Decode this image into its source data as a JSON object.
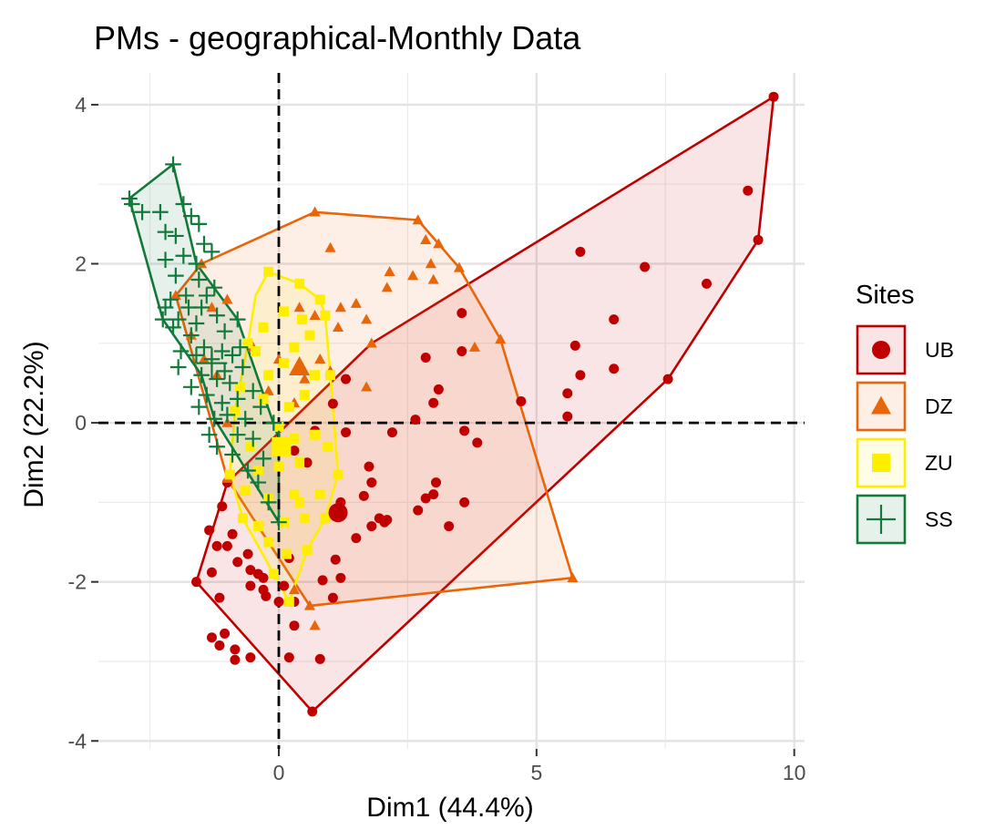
{
  "chart_data": {
    "type": "scatter",
    "title": "PMs - geographical-Monthly Data",
    "xlabel": "Dim1 (44.4%)",
    "ylabel": "Dim2 (22.2%)",
    "xlim": [
      -3.5,
      10.2
    ],
    "ylim": [
      -4.1,
      4.4
    ],
    "xticks": [
      0,
      5,
      10
    ],
    "xtick_labels": [
      "0",
      "5",
      "10"
    ],
    "yticks": [
      -4,
      -2,
      0,
      2,
      4
    ],
    "ytick_labels": [
      "-4",
      "-2",
      "0",
      "2",
      "4"
    ],
    "grid": true,
    "reference_lines": {
      "x": 0,
      "y": 0,
      "style": "dashed"
    },
    "legend": {
      "title": "Sites",
      "position": "right"
    },
    "series": [
      {
        "name": "UB",
        "color": "#c00000",
        "marker": "circle",
        "centroid": [
          1.15,
          -1.13
        ],
        "hull": [
          [
            9.6,
            4.1
          ],
          [
            9.3,
            2.3
          ],
          [
            7.55,
            0.55
          ],
          [
            0.65,
            -3.63
          ],
          [
            -1.6,
            -2.0
          ],
          [
            -1.0,
            -0.75
          ],
          [
            1.8,
            1.0
          ]
        ],
        "points": [
          [
            9.6,
            4.1
          ],
          [
            9.1,
            2.92
          ],
          [
            9.3,
            2.3
          ],
          [
            5.85,
            2.15
          ],
          [
            7.1,
            1.96
          ],
          [
            8.3,
            1.75
          ],
          [
            6.5,
            1.3
          ],
          [
            5.75,
            0.97
          ],
          [
            5.85,
            0.6
          ],
          [
            6.5,
            0.68
          ],
          [
            7.55,
            0.55
          ],
          [
            5.6,
            0.37
          ],
          [
            4.7,
            0.27
          ],
          [
            5.6,
            0.08
          ],
          [
            3.55,
            1.38
          ],
          [
            3.55,
            0.9
          ],
          [
            2.85,
            0.82
          ],
          [
            3.1,
            0.42
          ],
          [
            1.3,
            0.55
          ],
          [
            1.05,
            0.24
          ],
          [
            3.0,
            0.25
          ],
          [
            2.65,
            0.04
          ],
          [
            2.2,
            -0.12
          ],
          [
            3.6,
            -0.1
          ],
          [
            3.85,
            -0.25
          ],
          [
            0.7,
            -0.1
          ],
          [
            1.3,
            -0.12
          ],
          [
            0.3,
            -0.35
          ],
          [
            0.55,
            -0.5
          ],
          [
            1.75,
            -0.55
          ],
          [
            3.05,
            -0.75
          ],
          [
            1.8,
            -0.75
          ],
          [
            1.65,
            -0.92
          ],
          [
            3.0,
            -0.9
          ],
          [
            2.85,
            -0.95
          ],
          [
            3.6,
            -1.0
          ],
          [
            1.2,
            -1.0
          ],
          [
            1.95,
            -1.2
          ],
          [
            2.1,
            -1.22
          ],
          [
            2.05,
            -1.25
          ],
          [
            2.7,
            -1.1
          ],
          [
            3.3,
            -1.3
          ],
          [
            1.8,
            -1.3
          ],
          [
            1.5,
            -1.45
          ],
          [
            -1.0,
            -0.75
          ],
          [
            -1.1,
            -1.05
          ],
          [
            -1.35,
            -1.35
          ],
          [
            -0.9,
            -1.4
          ],
          [
            -1.0,
            -1.55
          ],
          [
            -0.6,
            -1.65
          ],
          [
            -1.2,
            -1.55
          ],
          [
            -0.55,
            -1.85
          ],
          [
            -0.4,
            -1.9
          ],
          [
            -0.3,
            -1.95
          ],
          [
            -1.6,
            -2.0
          ],
          [
            -1.3,
            -1.88
          ],
          [
            -1.15,
            -2.2
          ],
          [
            -0.55,
            -2.05
          ],
          [
            -0.25,
            -2.18
          ],
          [
            0.1,
            -2.05
          ],
          [
            0.85,
            -1.98
          ],
          [
            1.1,
            -1.72
          ],
          [
            1.2,
            -1.95
          ],
          [
            1.05,
            -2.2
          ],
          [
            0.3,
            -2.25
          ],
          [
            0.0,
            -2.25
          ],
          [
            0.3,
            -2.55
          ],
          [
            -1.05,
            -2.65
          ],
          [
            -1.3,
            -2.7
          ],
          [
            -1.15,
            -2.8
          ],
          [
            -0.85,
            -2.85
          ],
          [
            -0.85,
            -2.98
          ],
          [
            -0.55,
            -2.95
          ],
          [
            0.2,
            -2.95
          ],
          [
            0.8,
            -2.97
          ],
          [
            0.65,
            -3.63
          ],
          [
            -0.3,
            -2.1
          ],
          [
            0.2,
            -1.7
          ],
          [
            -0.8,
            -1.75
          ]
        ]
      },
      {
        "name": "DZ",
        "color": "#e8650a",
        "marker": "triangle",
        "centroid": [
          0.4,
          0.7
        ],
        "hull": [
          [
            0.7,
            2.65
          ],
          [
            2.7,
            2.55
          ],
          [
            3.5,
            1.95
          ],
          [
            4.3,
            1.05
          ],
          [
            5.7,
            -1.95
          ],
          [
            0.6,
            -2.3
          ],
          [
            -1.0,
            -0.7
          ],
          [
            -2.0,
            1.6
          ],
          [
            -1.5,
            2.0
          ]
        ],
        "points": [
          [
            0.7,
            2.65
          ],
          [
            2.7,
            2.55
          ],
          [
            2.85,
            2.3
          ],
          [
            3.1,
            2.25
          ],
          [
            2.95,
            2.0
          ],
          [
            3.5,
            1.95
          ],
          [
            3.0,
            1.8
          ],
          [
            2.6,
            1.85
          ],
          [
            2.15,
            1.9
          ],
          [
            2.1,
            1.7
          ],
          [
            1.0,
            2.2
          ],
          [
            4.3,
            1.05
          ],
          [
            3.8,
            0.95
          ],
          [
            1.2,
            1.45
          ],
          [
            1.5,
            1.5
          ],
          [
            1.7,
            1.3
          ],
          [
            0.4,
            1.45
          ],
          [
            0.7,
            1.35
          ],
          [
            1.15,
            1.2
          ],
          [
            1.7,
            0.45
          ],
          [
            1.8,
            1.0
          ],
          [
            0.35,
            0.65
          ],
          [
            0.5,
            0.55
          ],
          [
            0.8,
            0.8
          ],
          [
            1.0,
            0.65
          ],
          [
            0.3,
            0.25
          ],
          [
            0.0,
            0.8
          ],
          [
            -0.2,
            0.4
          ],
          [
            -0.5,
            0.95
          ],
          [
            -1.0,
            1.55
          ],
          [
            -1.3,
            1.45
          ],
          [
            -1.7,
            1.1
          ],
          [
            -1.45,
            0.8
          ],
          [
            -1.2,
            0.6
          ],
          [
            -1.0,
            0.0
          ],
          [
            -1.0,
            -0.7
          ],
          [
            5.7,
            -1.95
          ],
          [
            0.6,
            -2.3
          ],
          [
            0.7,
            -2.55
          ],
          [
            0.3,
            -2.1
          ],
          [
            -1.5,
            2.0
          ],
          [
            -2.0,
            1.6
          ],
          [
            0.45,
            0.65
          ]
        ]
      },
      {
        "name": "ZU",
        "color": "#ffee00",
        "marker": "square",
        "centroid": [
          0.05,
          -0.3
        ],
        "hull": [
          [
            -0.2,
            1.9
          ],
          [
            0.4,
            1.75
          ],
          [
            0.8,
            1.55
          ],
          [
            0.9,
            1.35
          ],
          [
            1.0,
            0.6
          ],
          [
            1.15,
            -0.65
          ],
          [
            0.9,
            -1.2
          ],
          [
            0.55,
            -1.6
          ],
          [
            0.2,
            -2.25
          ],
          [
            -0.7,
            -1.2
          ],
          [
            -0.95,
            -0.65
          ],
          [
            -0.85,
            0.15
          ],
          [
            -0.6,
            1.0
          ],
          [
            -0.45,
            1.6
          ]
        ],
        "points": [
          [
            -0.2,
            1.9
          ],
          [
            0.4,
            1.75
          ],
          [
            0.8,
            1.55
          ],
          [
            0.9,
            1.35
          ],
          [
            0.45,
            1.3
          ],
          [
            0.1,
            1.4
          ],
          [
            -0.3,
            1.2
          ],
          [
            0.6,
            1.1
          ],
          [
            0.3,
            0.95
          ],
          [
            -0.45,
            0.9
          ],
          [
            -0.6,
            1.0
          ],
          [
            0.1,
            0.75
          ],
          [
            -0.2,
            0.6
          ],
          [
            0.7,
            0.6
          ],
          [
            1.0,
            0.6
          ],
          [
            0.5,
            0.35
          ],
          [
            0.2,
            0.2
          ],
          [
            -0.3,
            0.3
          ],
          [
            -0.75,
            0.45
          ],
          [
            -0.85,
            0.15
          ],
          [
            0.0,
            -0.05
          ],
          [
            0.3,
            -0.2
          ],
          [
            0.7,
            -0.15
          ],
          [
            0.95,
            -0.3
          ],
          [
            1.15,
            -0.65
          ],
          [
            0.4,
            -0.5
          ],
          [
            0.0,
            -0.55
          ],
          [
            -0.4,
            -0.6
          ],
          [
            -0.95,
            -0.65
          ],
          [
            -0.65,
            -0.85
          ],
          [
            -0.2,
            -0.95
          ],
          [
            0.3,
            -0.9
          ],
          [
            0.8,
            -0.9
          ],
          [
            0.9,
            -1.2
          ],
          [
            0.5,
            -1.2
          ],
          [
            0.1,
            -1.25
          ],
          [
            -0.4,
            -1.3
          ],
          [
            -0.7,
            -1.2
          ],
          [
            0.55,
            -1.6
          ],
          [
            0.15,
            -1.65
          ],
          [
            -0.2,
            -1.5
          ],
          [
            0.2,
            -2.25
          ],
          [
            -0.1,
            -1.9
          ],
          [
            0.4,
            -1.0
          ],
          [
            -0.55,
            -0.3
          ]
        ]
      },
      {
        "name": "SS",
        "color": "#117a3a",
        "marker": "plus",
        "centroid": [
          -1.3,
          0.75
        ],
        "hull": [
          [
            -2.9,
            2.82
          ],
          [
            -2.05,
            3.25
          ],
          [
            -1.6,
            2.0
          ],
          [
            -0.8,
            1.3
          ],
          [
            0.0,
            -0.2
          ],
          [
            0.0,
            -1.25
          ],
          [
            -1.25,
            0.05
          ],
          [
            -1.5,
            0.6
          ],
          [
            -2.25,
            1.3
          ]
        ],
        "points": [
          [
            -2.05,
            3.25
          ],
          [
            -2.9,
            2.82
          ],
          [
            -2.85,
            2.75
          ],
          [
            -2.3,
            2.65
          ],
          [
            -2.65,
            2.65
          ],
          [
            -1.85,
            2.75
          ],
          [
            -1.7,
            2.6
          ],
          [
            -1.55,
            2.5
          ],
          [
            -2.2,
            2.4
          ],
          [
            -2.0,
            2.35
          ],
          [
            -1.45,
            2.25
          ],
          [
            -1.3,
            2.15
          ],
          [
            -1.85,
            2.1
          ],
          [
            -2.2,
            2.05
          ],
          [
            -1.6,
            2.0
          ],
          [
            -2.0,
            1.85
          ],
          [
            -1.55,
            1.8
          ],
          [
            -1.25,
            1.7
          ],
          [
            -1.8,
            1.6
          ],
          [
            -2.25,
            1.3
          ],
          [
            -2.2,
            1.45
          ],
          [
            -2.1,
            1.55
          ],
          [
            -1.95,
            1.3
          ],
          [
            -1.75,
            1.45
          ],
          [
            -1.5,
            1.45
          ],
          [
            -1.2,
            1.35
          ],
          [
            -0.8,
            1.3
          ],
          [
            -1.05,
            1.15
          ],
          [
            -1.7,
            1.1
          ],
          [
            -2.05,
            1.2
          ],
          [
            -1.45,
            0.95
          ],
          [
            -1.6,
            0.85
          ],
          [
            -1.9,
            0.9
          ],
          [
            -1.3,
            0.8
          ],
          [
            -1.1,
            0.9
          ],
          [
            -0.9,
            0.85
          ],
          [
            -0.7,
            0.7
          ],
          [
            -1.5,
            0.6
          ],
          [
            -1.2,
            0.55
          ],
          [
            -0.95,
            0.5
          ],
          [
            -1.7,
            0.45
          ],
          [
            -1.4,
            0.35
          ],
          [
            -1.1,
            0.25
          ],
          [
            -0.8,
            0.3
          ],
          [
            -0.5,
            0.4
          ],
          [
            -1.25,
            0.05
          ],
          [
            -1.0,
            0.1
          ],
          [
            -0.65,
            0.05
          ],
          [
            -0.35,
            0.2
          ],
          [
            -0.1,
            0.0
          ],
          [
            -0.8,
            -0.15
          ],
          [
            -0.5,
            -0.2
          ],
          [
            -1.2,
            -0.3
          ],
          [
            0.0,
            -0.2
          ],
          [
            -0.3,
            -0.45
          ],
          [
            -0.9,
            -0.4
          ],
          [
            -0.4,
            -0.75
          ],
          [
            -0.2,
            -1.0
          ],
          [
            0.0,
            -1.25
          ],
          [
            -0.6,
            -0.6
          ],
          [
            -1.35,
            -0.15
          ],
          [
            -1.55,
            0.2
          ],
          [
            -1.95,
            0.7
          ],
          [
            -1.6,
            1.25
          ],
          [
            -1.4,
            1.6
          ],
          [
            -1.05,
            0.65
          ],
          [
            -0.75,
            0.95
          ]
        ]
      }
    ]
  }
}
